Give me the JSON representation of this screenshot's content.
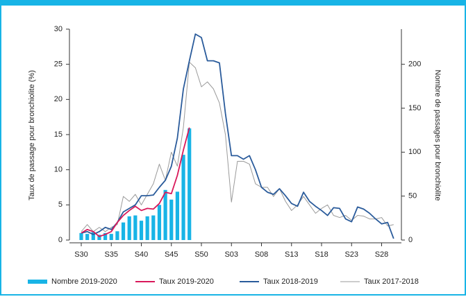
{
  "chart_data": {
    "type": "combo",
    "ylabel": "Taux de passage pour bronchiolite (%)",
    "y2label": "Nombre de passages pour bronchiolite",
    "categories": [
      "S30",
      null,
      null,
      null,
      null,
      "S35",
      null,
      null,
      null,
      null,
      "S40",
      null,
      null,
      null,
      null,
      "S45",
      null,
      null,
      null,
      null,
      "S50",
      null,
      null,
      null,
      null,
      "S03",
      null,
      null,
      null,
      null,
      "S08",
      null,
      null,
      null,
      null,
      "S13",
      null,
      null,
      null,
      null,
      "S18",
      null,
      null,
      null,
      null,
      "S23",
      null,
      null,
      null,
      null,
      "S28",
      null,
      null
    ],
    "ylim": [
      0,
      30
    ],
    "yticks": [
      0,
      5,
      10,
      15,
      20,
      25,
      30
    ],
    "y2lim": [
      0,
      240
    ],
    "y2ticks": [
      0,
      50,
      100,
      150,
      200
    ],
    "legend": "bottom",
    "series": [
      {
        "name": "Nombre 2019-2020",
        "type": "bar",
        "axis": "y2",
        "color": "#18b4e6",
        "values": [
          8,
          7,
          9,
          6,
          8,
          7,
          10,
          20,
          27,
          28,
          22,
          27,
          28,
          40,
          57,
          46,
          55,
          97,
          127,
          null,
          null,
          null,
          null,
          null,
          null,
          null,
          null,
          null,
          null,
          null,
          null,
          null,
          null,
          null,
          null,
          null,
          null,
          null,
          null,
          null,
          null,
          null,
          null,
          null,
          null,
          null,
          null,
          null,
          null,
          null,
          null,
          null,
          null
        ]
      },
      {
        "name": "Taux 2019-2020",
        "type": "line",
        "color": "#d9185a",
        "values": [
          1.0,
          1.5,
          1.2,
          0.5,
          0.8,
          1.2,
          2.5,
          3.5,
          4.2,
          4.8,
          4.2,
          4.5,
          4.4,
          5.2,
          6.8,
          6.6,
          9.2,
          12.8,
          16.0,
          null,
          null,
          null,
          null,
          null,
          null,
          null,
          null,
          null,
          null,
          null,
          null,
          null,
          null,
          null,
          null,
          null,
          null,
          null,
          null,
          null,
          null,
          null,
          null,
          null,
          null,
          null,
          null,
          null,
          null,
          null,
          null,
          null,
          null
        ]
      },
      {
        "name": "Taux 2018-2019",
        "type": "line",
        "color": "#2a5b9b",
        "values": [
          1.0,
          1.2,
          0.8,
          1.2,
          1.8,
          1.5,
          2.5,
          4.0,
          4.5,
          5.0,
          6.3,
          6.3,
          6.4,
          7.5,
          8.5,
          10.5,
          14.5,
          21.5,
          25.5,
          29.3,
          28.8,
          25.5,
          25.5,
          25.2,
          18.0,
          12.0,
          12.0,
          11.5,
          12.0,
          10.0,
          7.5,
          6.8,
          6.5,
          7.3,
          6.3,
          5.2,
          4.8,
          6.8,
          5.5,
          4.8,
          4.2,
          3.5,
          4.6,
          4.5,
          3.0,
          2.6,
          4.7,
          4.4,
          3.8,
          3.0,
          2.3,
          2.5,
          0.2
        ]
      },
      {
        "name": "Taux 2017-2018",
        "type": "line",
        "color": "#9a9a9a",
        "values": [
          1.2,
          2.2,
          1.2,
          1.8,
          1.2,
          1.8,
          2.2,
          6.2,
          5.5,
          6.5,
          5.0,
          6.5,
          8.0,
          10.8,
          8.5,
          12.5,
          10.5,
          16.0,
          25.3,
          24.5,
          21.8,
          22.5,
          21.5,
          19.5,
          15.0,
          5.4,
          11.2,
          11.2,
          10.8,
          8.0,
          7.5,
          7.5,
          6.2,
          7.3,
          5.5,
          4.2,
          5.0,
          6.2,
          5.0,
          3.8,
          4.5,
          5.0,
          3.5,
          3.2,
          3.5,
          2.8,
          3.5,
          3.4,
          3.0,
          3.0,
          3.2,
          2.0,
          2.2
        ]
      }
    ]
  }
}
